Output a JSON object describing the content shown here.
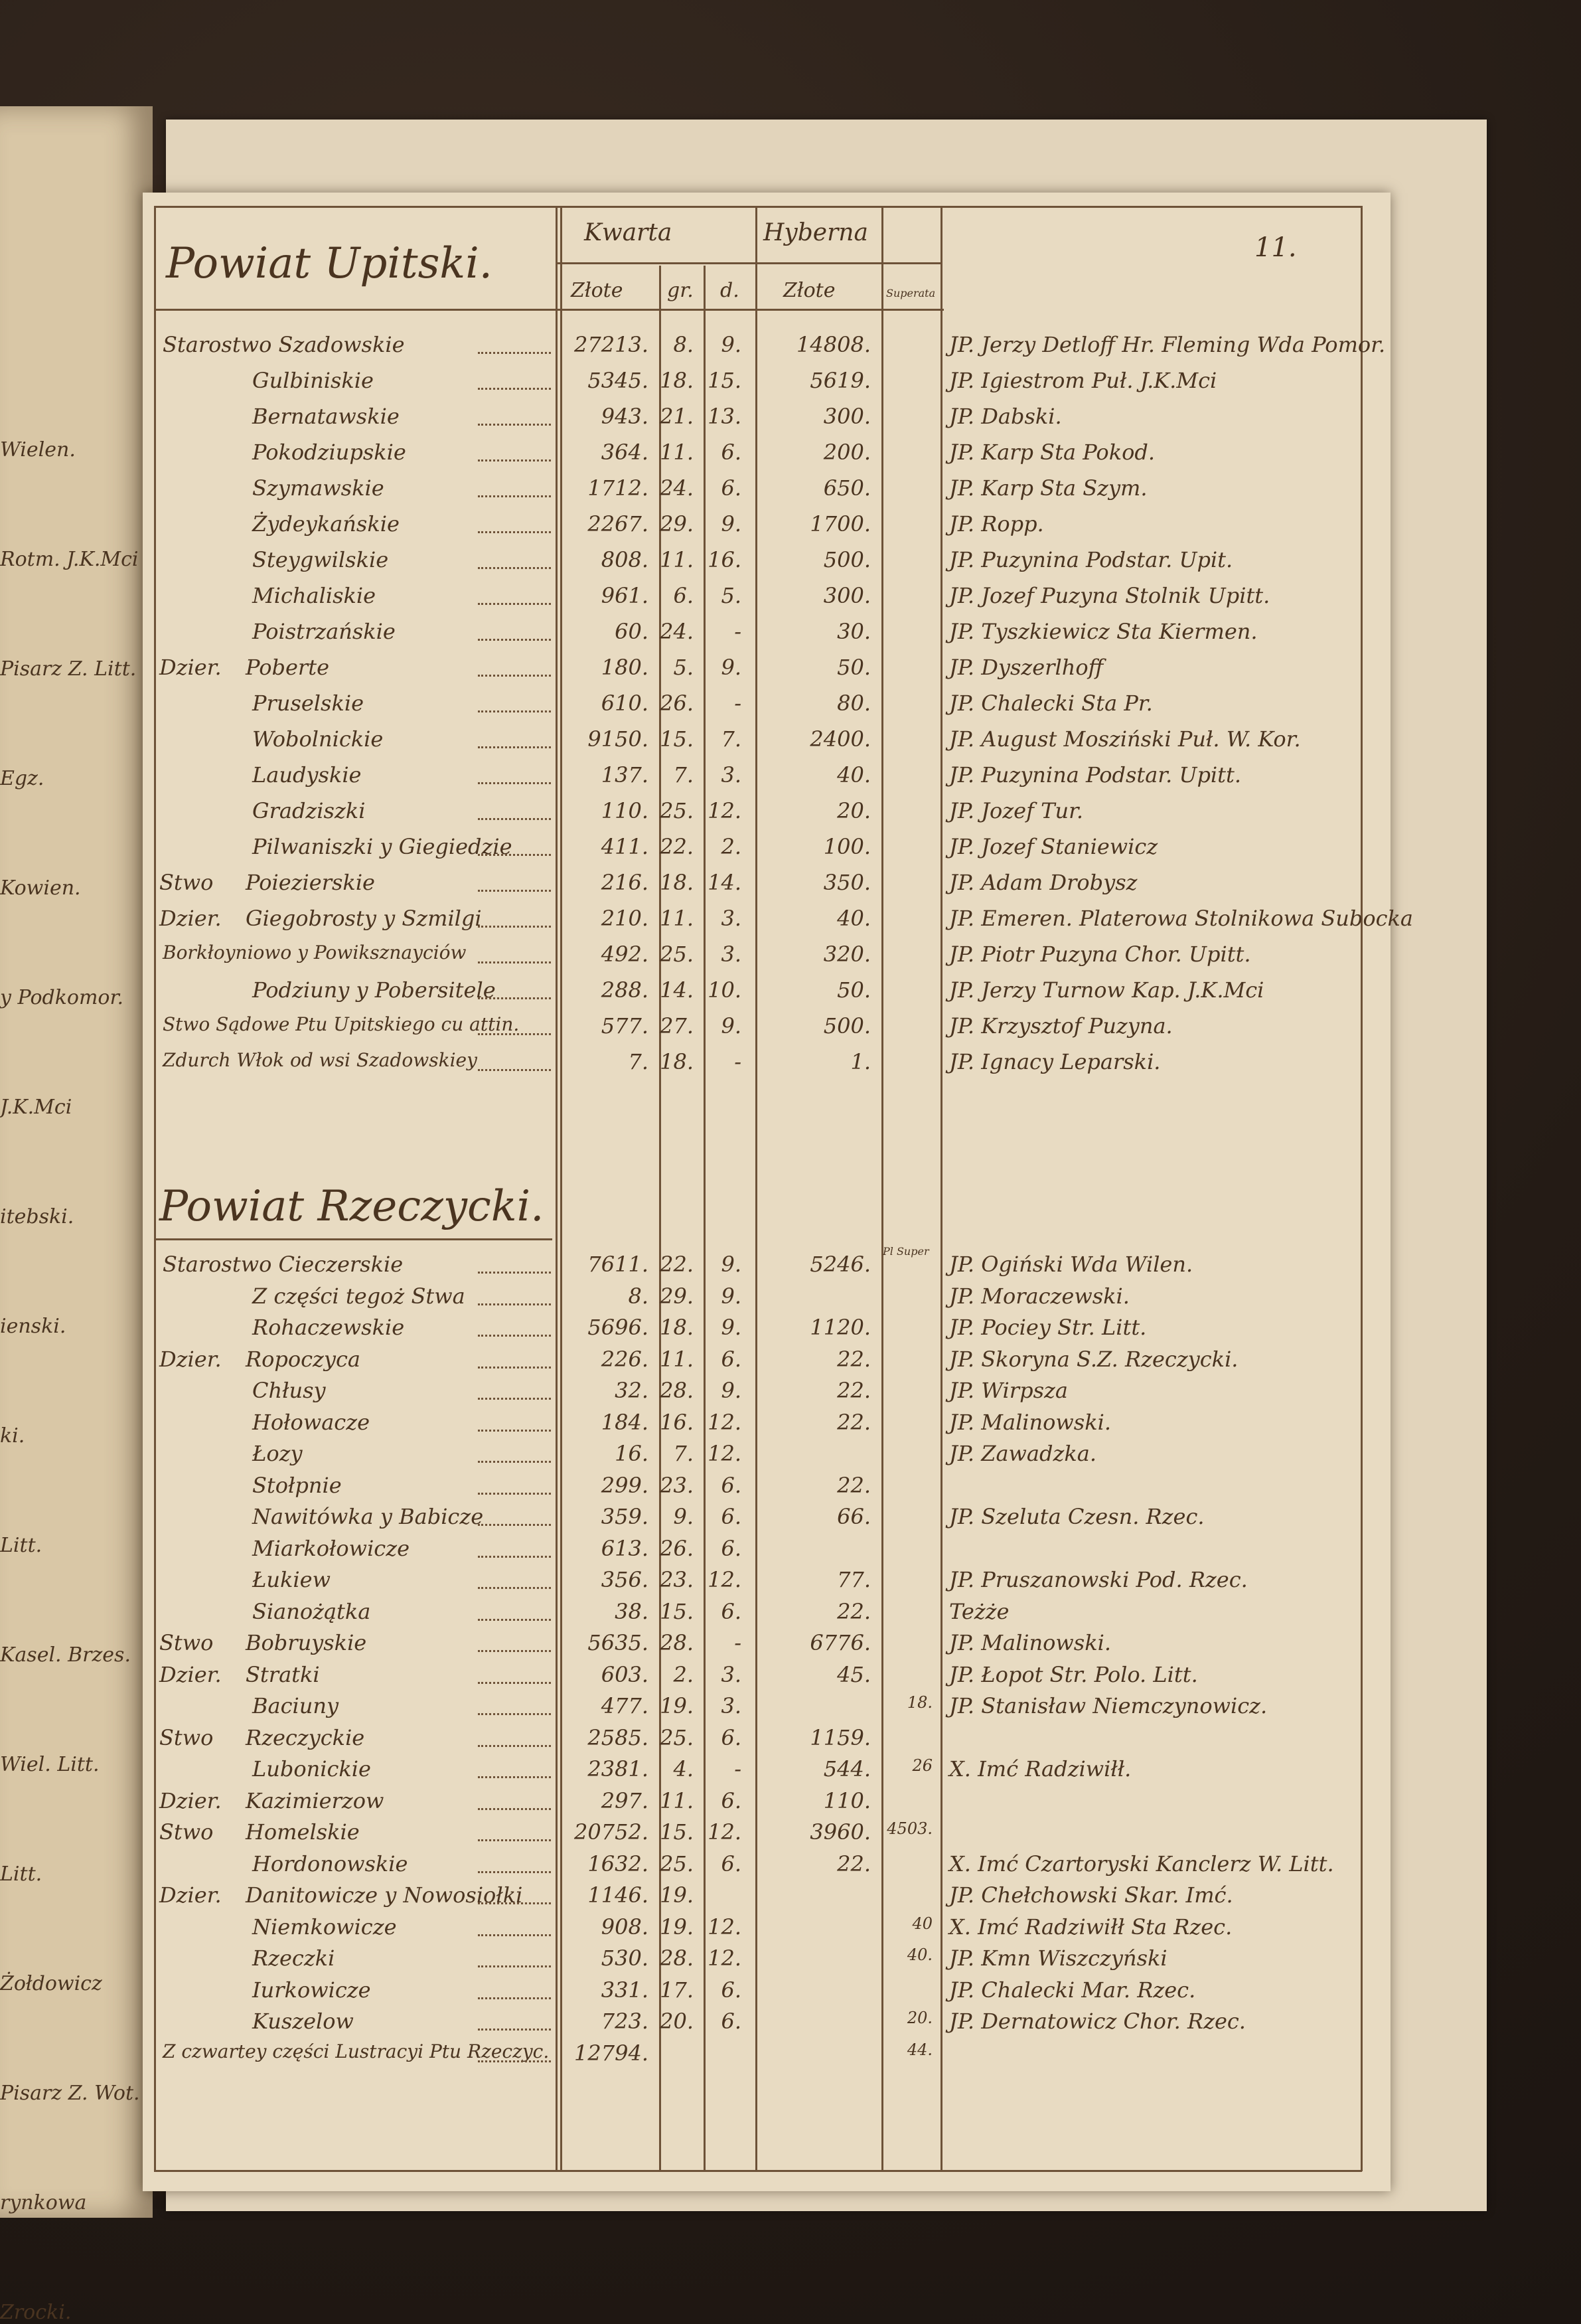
{
  "page_number": "11.",
  "left_page_fragments": [
    "Wielen.",
    "Rotm. J.K.Mci",
    "Pisarz Z. Litt.",
    "Egz.",
    "Kowien.",
    "y Podkomor.",
    "J.K.Mci",
    "itebski.",
    "ienski.",
    "ki.",
    "Litt.",
    "Kasel. Brzes.",
    "Wiel. Litt.",
    "Litt.",
    "Żołdowicz",
    "Pisarz Z. Wot.",
    "rynkowa",
    "Zrocki."
  ],
  "headers": {
    "kwarta": "Kwarta",
    "hyberna": "Hyberna",
    "zlote": "Złote",
    "gr": "gr.",
    "d": "d.",
    "hyberna_zlote": "Złote",
    "superata": "Superata",
    "superata_short": "Pl Super"
  },
  "sections": [
    {
      "title": "Powiat Upitski.",
      "rows": [
        {
          "prefix": "",
          "label": "Starostwo Szadowskie",
          "zl": "27213.",
          "gr": "8.",
          "d": "9.",
          "hyb": "14808.",
          "sup": "",
          "holder": "JP. Jerzy Detloff Hr. Fleming Wda Pomor."
        },
        {
          "prefix": "",
          "label": "Gulbiniskie",
          "zl": "5345.",
          "gr": "18.",
          "d": "15.",
          "hyb": "5619.",
          "sup": "",
          "holder": "JP. Igiestrom Puł. J.K.Mci"
        },
        {
          "prefix": "",
          "label": "Bernatawskie",
          "zl": "943.",
          "gr": "21.",
          "d": "13.",
          "hyb": "300.",
          "sup": "",
          "holder": "JP. Dabski."
        },
        {
          "prefix": "",
          "label": "Pokodziupskie",
          "zl": "364.",
          "gr": "11.",
          "d": "6.",
          "hyb": "200.",
          "sup": "",
          "holder": "JP. Karp Sta Pokod."
        },
        {
          "prefix": "",
          "label": "Szymawskie",
          "zl": "1712.",
          "gr": "24.",
          "d": "6.",
          "hyb": "650.",
          "sup": "",
          "holder": "JP. Karp Sta Szym."
        },
        {
          "prefix": "",
          "label": "Żydeykańskie",
          "zl": "2267.",
          "gr": "29.",
          "d": "9.",
          "hyb": "1700.",
          "sup": "",
          "holder": "JP. Ropp."
        },
        {
          "prefix": "",
          "label": "Steygwilskie",
          "zl": "808.",
          "gr": "11.",
          "d": "16.",
          "hyb": "500.",
          "sup": "",
          "holder": "JP. Puzynina Podstar. Upit."
        },
        {
          "prefix": "",
          "label": "Michaliskie",
          "zl": "961.",
          "gr": "6.",
          "d": "5.",
          "hyb": "300.",
          "sup": "",
          "holder": "JP. Jozef Puzyna Stolnik Upitt."
        },
        {
          "prefix": "",
          "label": "Poistrzańskie",
          "zl": "60.",
          "gr": "24.",
          "d": "-",
          "hyb": "30.",
          "sup": "",
          "holder": "JP. Tyszkiewicz Sta Kiermen."
        },
        {
          "prefix": "Dzier.",
          "label": "Poberte",
          "zl": "180.",
          "gr": "5.",
          "d": "9.",
          "hyb": "50.",
          "sup": "",
          "holder": "JP. Dyszerlhoff"
        },
        {
          "prefix": "",
          "label": "Pruselskie",
          "zl": "610.",
          "gr": "26.",
          "d": "-",
          "hyb": "80.",
          "sup": "",
          "holder": "JP. Chalecki Sta Pr."
        },
        {
          "prefix": "",
          "label": "Wobolnickie",
          "zl": "9150.",
          "gr": "15.",
          "d": "7.",
          "hyb": "2400.",
          "sup": "",
          "holder": "JP. August Mosziński Puł. W. Kor."
        },
        {
          "prefix": "",
          "label": "Laudyskie",
          "zl": "137.",
          "gr": "7.",
          "d": "3.",
          "hyb": "40.",
          "sup": "",
          "holder": "JP. Puzynina Podstar. Upitt."
        },
        {
          "prefix": "",
          "label": "Gradziszki",
          "zl": "110.",
          "gr": "25.",
          "d": "12.",
          "hyb": "20.",
          "sup": "",
          "holder": "JP. Jozef Tur."
        },
        {
          "prefix": "",
          "label": "Pilwaniszki y Giegiedzie",
          "zl": "411.",
          "gr": "22.",
          "d": "2.",
          "hyb": "100.",
          "sup": "",
          "holder": "JP. Jozef Staniewicz"
        },
        {
          "prefix": "Stwo",
          "label": "Poiezierskie",
          "zl": "216.",
          "gr": "18.",
          "d": "14.",
          "hyb": "350.",
          "sup": "",
          "holder": "JP. Adam Drobysz"
        },
        {
          "prefix": "Dzier.",
          "label": "Giegobrosty y Szmilgi",
          "zl": "210.",
          "gr": "11.",
          "d": "3.",
          "hyb": "40.",
          "sup": "",
          "holder": "JP. Emeren. Platerowa Stolnikowa Subocka"
        },
        {
          "prefix": "",
          "label": "Borkłoyniowo y Powiksznayciów",
          "zl": "492.",
          "gr": "25.",
          "d": "3.",
          "hyb": "320.",
          "sup": "",
          "holder": "JP. Piotr Puzyna Chor. Upitt."
        },
        {
          "prefix": "",
          "label": "Podziuny y Pobersitele",
          "zl": "288.",
          "gr": "14.",
          "d": "10.",
          "hyb": "50.",
          "sup": "",
          "holder": "JP. Jerzy Turnow Kap. J.K.Mci"
        },
        {
          "prefix": "",
          "label": "Stwo Sądowe Ptu Upitskiego cu attin.",
          "zl": "577.",
          "gr": "27.",
          "d": "9.",
          "hyb": "500.",
          "sup": "",
          "holder": "JP. Krzysztof Puzyna."
        },
        {
          "prefix": "",
          "label": "Zdurch Włok od wsi Szadowskiey",
          "zl": "7.",
          "gr": "18.",
          "d": "-",
          "hyb": "1.",
          "sup": "",
          "holder": "JP. Ignacy Leparski."
        }
      ]
    },
    {
      "title": "Powiat Rzeczycki.",
      "rows": [
        {
          "prefix": "",
          "label": "Starostwo Cieczerskie",
          "zl": "7611.",
          "gr": "22.",
          "d": "9.",
          "hyb": "5246.",
          "sup": "",
          "holder": "JP. Ogiński Wda Wilen."
        },
        {
          "prefix": "",
          "label": "Z części tegoż Stwa",
          "zl": "8.",
          "gr": "29.",
          "d": "9.",
          "hyb": "",
          "sup": "",
          "holder": "JP. Moraczewski."
        },
        {
          "prefix": "",
          "label": "Rohaczewskie",
          "zl": "5696.",
          "gr": "18.",
          "d": "9.",
          "hyb": "1120.",
          "sup": "",
          "holder": "JP. Pociey Str. Litt."
        },
        {
          "prefix": "Dzier.",
          "label": "Ropoczyca",
          "zl": "226.",
          "gr": "11.",
          "d": "6.",
          "hyb": "22.",
          "sup": "",
          "holder": "JP. Skoryna S.Z. Rzeczycki."
        },
        {
          "prefix": "",
          "label": "Chłusy",
          "zl": "32.",
          "gr": "28.",
          "d": "9.",
          "hyb": "22.",
          "sup": "",
          "holder": "JP. Wirpsza"
        },
        {
          "prefix": "",
          "label": "Hołowacze",
          "zl": "184.",
          "gr": "16.",
          "d": "12.",
          "hyb": "22.",
          "sup": "",
          "holder": "JP. Malinowski."
        },
        {
          "prefix": "",
          "label": "Łozy",
          "zl": "16.",
          "gr": "7.",
          "d": "12.",
          "hyb": "",
          "sup": "",
          "holder": "JP. Zawadzka."
        },
        {
          "prefix": "",
          "label": "Stołpnie",
          "zl": "299.",
          "gr": "23.",
          "d": "6.",
          "hyb": "22.",
          "sup": "",
          "holder": ""
        },
        {
          "prefix": "",
          "label": "Nawitówka y Babicze",
          "zl": "359.",
          "gr": "9.",
          "d": "6.",
          "hyb": "66.",
          "sup": "",
          "holder": "JP. Szeluta Czesn. Rzec."
        },
        {
          "prefix": "",
          "label": "Miarkołowicze",
          "zl": "613.",
          "gr": "26.",
          "d": "6.",
          "hyb": "",
          "sup": "",
          "holder": ""
        },
        {
          "prefix": "",
          "label": "Łukiew",
          "zl": "356.",
          "gr": "23.",
          "d": "12.",
          "hyb": "77.",
          "sup": "",
          "holder": "JP. Pruszanowski Pod. Rzec."
        },
        {
          "prefix": "",
          "label": "Sianożątka",
          "zl": "38.",
          "gr": "15.",
          "d": "6.",
          "hyb": "22.",
          "sup": "",
          "holder": "Teżże"
        },
        {
          "prefix": "Stwo",
          "label": "Bobruyskie",
          "zl": "5635.",
          "gr": "28.",
          "d": "-",
          "hyb": "6776.",
          "sup": "",
          "holder": "JP. Malinowski."
        },
        {
          "prefix": "Dzier.",
          "label": "Stratki",
          "zl": "603.",
          "gr": "2.",
          "d": "3.",
          "hyb": "45.",
          "sup": "",
          "holder": "JP. Łopot Str. Polo. Litt."
        },
        {
          "prefix": "",
          "label": "Baciuny",
          "zl": "477.",
          "gr": "19.",
          "d": "3.",
          "hyb": "",
          "sup": "18.",
          "holder": "JP. Stanisław Niemczynowicz."
        },
        {
          "prefix": "Stwo",
          "label": "Rzeczyckie",
          "zl": "2585.",
          "gr": "25.",
          "d": "6.",
          "hyb": "1159.",
          "sup": "",
          "holder": ""
        },
        {
          "prefix": "",
          "label": "Lubonickie",
          "zl": "2381.",
          "gr": "4.",
          "d": "-",
          "hyb": "544.",
          "sup": "26",
          "holder": "X. Imć Radziwiłł."
        },
        {
          "prefix": "Dzier.",
          "label": "Kazimierzow",
          "zl": "297.",
          "gr": "11.",
          "d": "6.",
          "hyb": "110.",
          "sup": "",
          "holder": ""
        },
        {
          "prefix": "Stwo",
          "label": "Homelskie",
          "zl": "20752.",
          "gr": "15.",
          "d": "12.",
          "hyb": "3960.",
          "sup": "4503.",
          "holder": ""
        },
        {
          "prefix": "",
          "label": "Hordonowskie",
          "zl": "1632.",
          "gr": "25.",
          "d": "6.",
          "hyb": "22.",
          "sup": "",
          "holder": "X. Imć Czartoryski Kanclerz W. Litt."
        },
        {
          "prefix": "Dzier.",
          "label": "Danitowicze y Nowosiołki",
          "zl": "1146.",
          "gr": "19.",
          "d": "",
          "hyb": "",
          "sup": "",
          "holder": "JP. Chełchowski Skar. Imć."
        },
        {
          "prefix": "",
          "label": "Niemkowicze",
          "zl": "908.",
          "gr": "19.",
          "d": "12.",
          "hyb": "",
          "sup": "40",
          "holder": "X. Imć Radziwiłł Sta Rzec."
        },
        {
          "prefix": "",
          "label": "Rzeczki",
          "zl": "530.",
          "gr": "28.",
          "d": "12.",
          "hyb": "",
          "sup": "40.",
          "holder": "JP. Kmn Wiszczyński"
        },
        {
          "prefix": "",
          "label": "Iurkowicze",
          "zl": "331.",
          "gr": "17.",
          "d": "6.",
          "hyb": "",
          "sup": "",
          "holder": "JP. Chalecki Mar. Rzec."
        },
        {
          "prefix": "",
          "label": "Kuszelow",
          "zl": "723.",
          "gr": "20.",
          "d": "6.",
          "hyb": "",
          "sup": "20.",
          "holder": "JP. Dernatowicz Chor. Rzec."
        },
        {
          "prefix": "",
          "label": "Z czwartey części Lustracyi Ptu Rzeczyc.",
          "zl": "12794.",
          "gr": "",
          "d": "",
          "hyb": "",
          "sup": "44.",
          "holder": ""
        }
      ]
    }
  ]
}
